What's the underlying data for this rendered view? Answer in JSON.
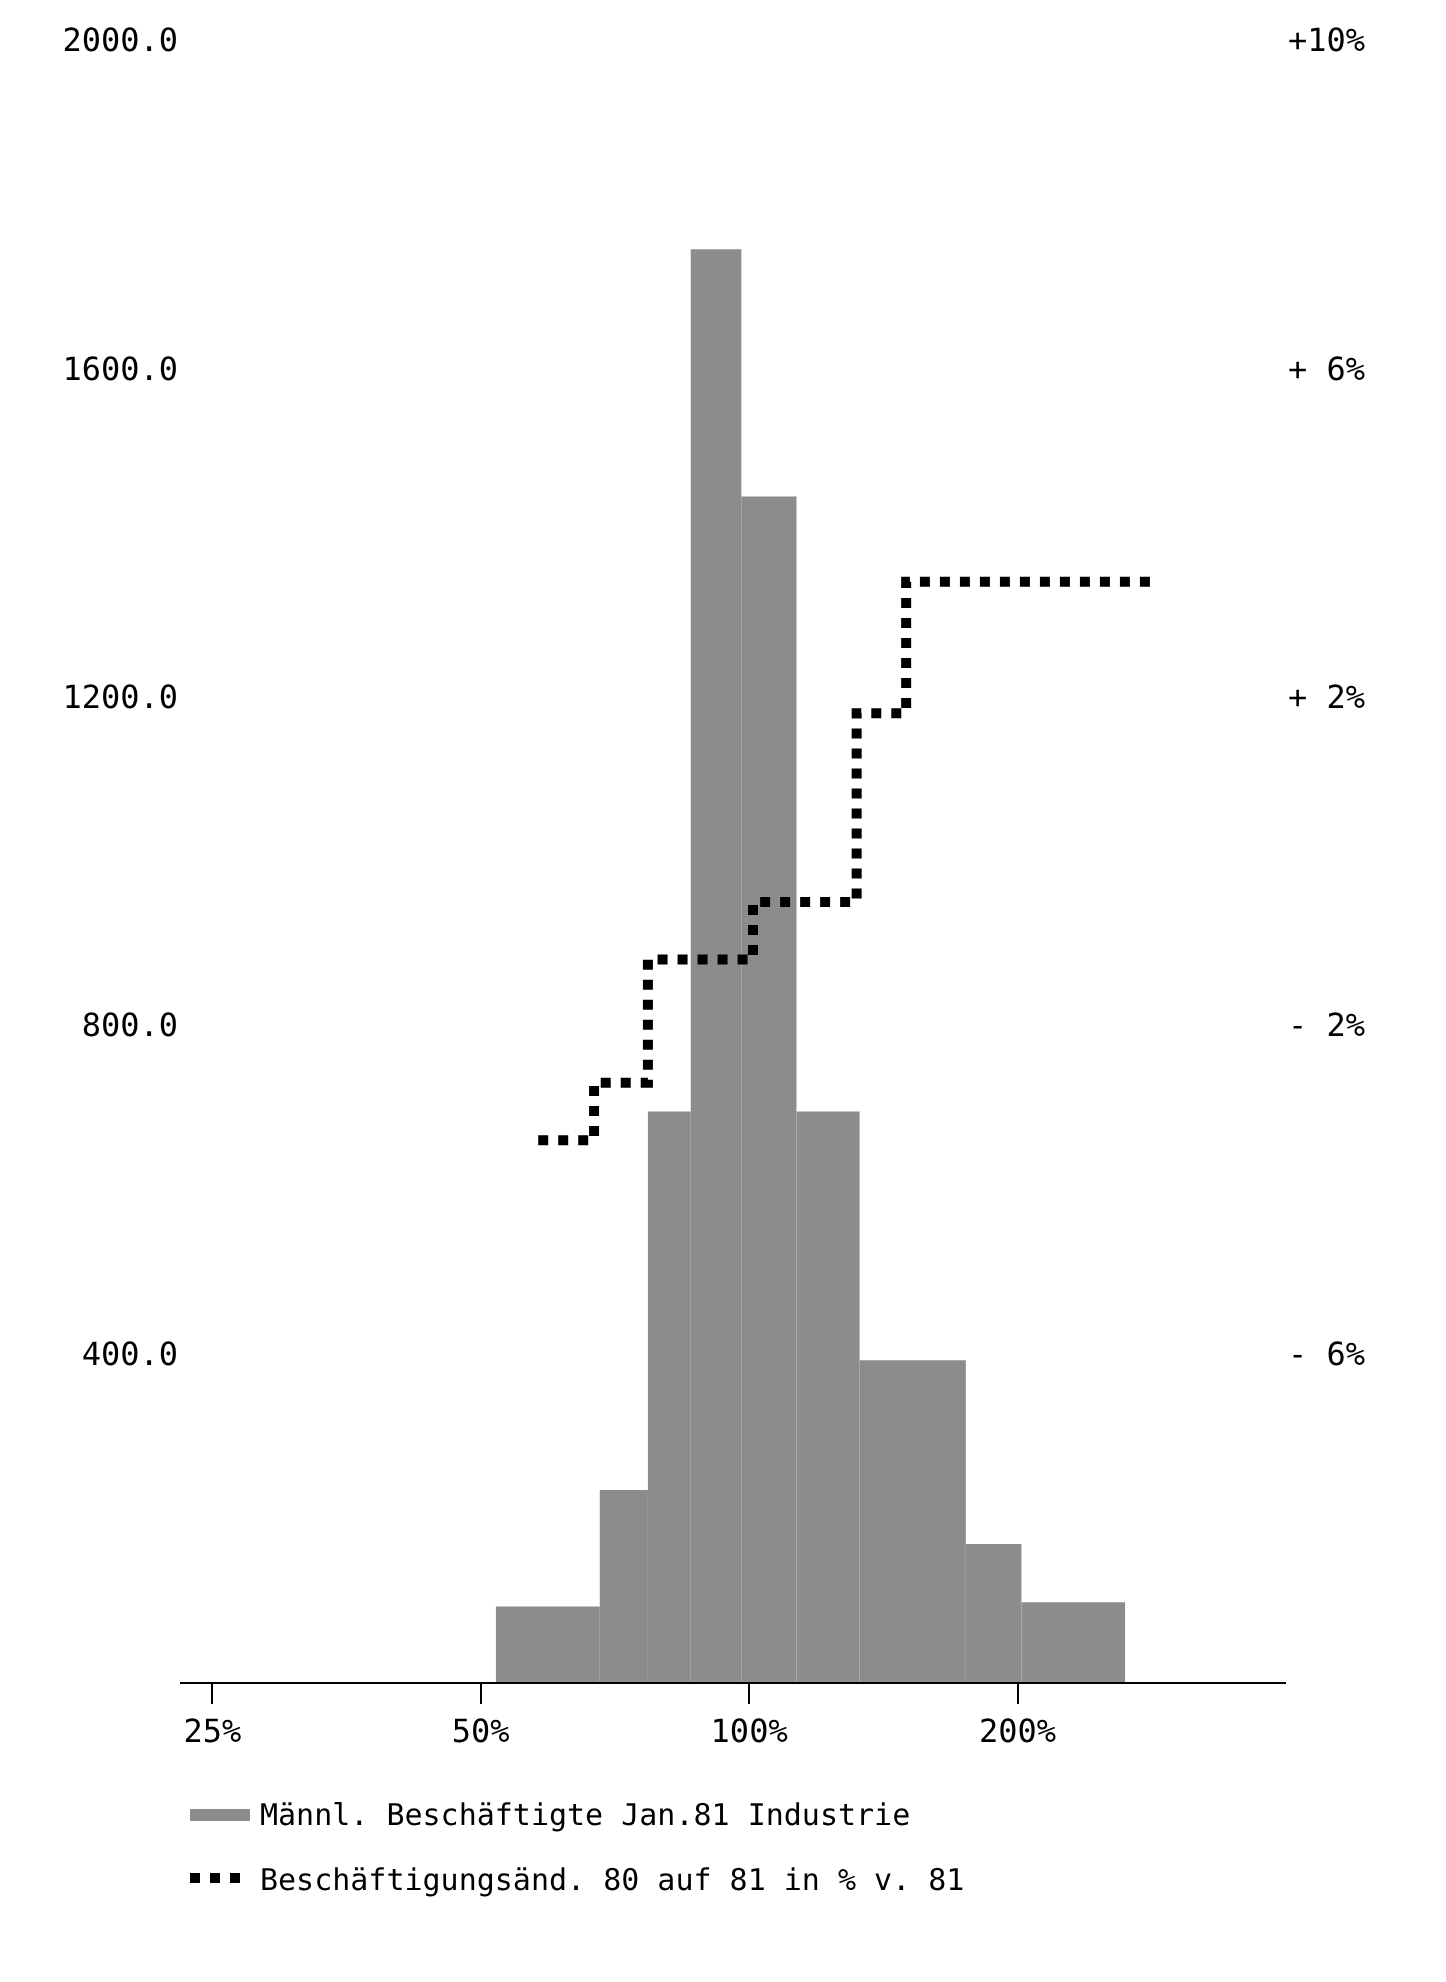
{
  "chart_data": {
    "type": "histogram",
    "bins": [
      52,
      68,
      77,
      86,
      98,
      113,
      133,
      175,
      202,
      264
    ],
    "series": [
      {
        "name": "Männl. Beschäftigte Jan.81 Industrie",
        "color": "#8c8c8c",
        "values": [
          92,
          234,
          695,
          1745,
          1444,
          695,
          392,
          168,
          97
        ]
      },
      {
        "type": "step",
        "axis": "y2",
        "name": "Beschäftigungsänd. 80 auf 81 in % v. 81",
        "color": "#000000",
        "line_style": "dotted",
        "x": [
          58,
          67,
          77,
          101,
          132,
          150,
          287
        ],
        "values": [
          -3.4,
          -2.7,
          -1.2,
          -0.5,
          1.8,
          3.4,
          3.4
        ]
      }
    ],
    "log": "x",
    "xlim": [
      23,
      400
    ],
    "xticks": [
      {
        "value": 25,
        "label": "25%"
      },
      {
        "value": 50,
        "label": "50%"
      },
      {
        "value": 100,
        "label": "100%"
      },
      {
        "value": 200,
        "label": "200%"
      }
    ],
    "ylim": [
      0,
      2000
    ],
    "yticks": [
      {
        "value": 400,
        "label": "400.0"
      },
      {
        "value": 800,
        "label": "800.0"
      },
      {
        "value": 1200,
        "label": "1200.0"
      },
      {
        "value": 1600,
        "label": "1600.0"
      },
      {
        "value": 2000,
        "label": "2000.0"
      }
    ],
    "y2lim": [
      -10,
      10
    ],
    "y2ticks": [
      {
        "value": -6,
        "label": "- 6%"
      },
      {
        "value": -2,
        "label": "- 2%"
      },
      {
        "value": 2,
        "label": "+ 2%"
      },
      {
        "value": 6,
        "label": "+ 6%"
      },
      {
        "value": 10,
        "label": "+10%"
      }
    ],
    "legend": "bottom"
  }
}
